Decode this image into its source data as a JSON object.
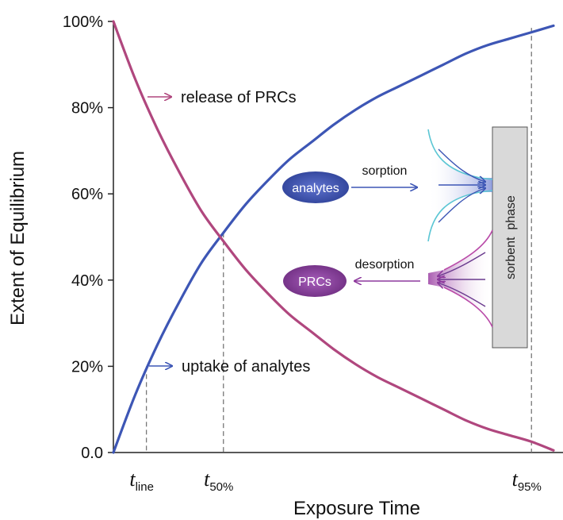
{
  "chart_data": {
    "type": "line",
    "xlabel": "Exposure Time",
    "ylabel": "Extent of Equilibrium",
    "ylim": [
      0,
      100
    ],
    "yticks": [
      {
        "value": 0,
        "label": "0.0"
      },
      {
        "value": 20,
        "label": "20%"
      },
      {
        "value": 40,
        "label": "40%"
      },
      {
        "value": 60,
        "label": "60%"
      },
      {
        "value": 80,
        "label": "80%"
      },
      {
        "value": 100,
        "label": "100%"
      }
    ],
    "series": [
      {
        "key": "uptake",
        "color": "#3d56b5",
        "x": [
          0,
          0.05,
          0.1,
          0.15,
          0.2,
          0.25,
          0.3,
          0.35,
          0.4,
          0.45,
          0.5,
          0.55,
          0.6,
          0.65,
          0.7,
          0.75,
          0.8,
          0.85,
          0.9,
          0.95,
          1.0
        ],
        "values": [
          0,
          13.5,
          25,
          35,
          44,
          51,
          57.5,
          63,
          68,
          72,
          76,
          79.5,
          82.5,
          85,
          87.5,
          90,
          92.5,
          94.5,
          96,
          97.5,
          99
        ]
      },
      {
        "key": "release",
        "color": "#b0477e",
        "x": [
          0,
          0.05,
          0.1,
          0.15,
          0.2,
          0.25,
          0.3,
          0.35,
          0.4,
          0.45,
          0.5,
          0.55,
          0.6,
          0.65,
          0.7,
          0.75,
          0.8,
          0.85,
          0.9,
          0.95,
          1.0
        ],
        "values": [
          100,
          86.5,
          75,
          65,
          56,
          49,
          42.5,
          37,
          32,
          28,
          24,
          20.5,
          17.5,
          15,
          12.5,
          10,
          7.5,
          5.5,
          4,
          2.5,
          0.5
        ]
      }
    ],
    "markers": [
      {
        "x": 0.075,
        "y": 20,
        "label": "t",
        "sub": "line"
      },
      {
        "x": 0.25,
        "y": 51,
        "label": "t",
        "sub": "50%"
      },
      {
        "x": 0.95,
        "y": 98.5,
        "label": "t",
        "sub": "95%"
      }
    ],
    "annotations": {
      "release": "release of PRCs",
      "uptake": "uptake of analytes"
    }
  },
  "inset": {
    "analytes": "analytes",
    "sorption": "sorption",
    "prcs": "PRCs",
    "desorption": "desorption",
    "sorbent": "sorbent  phase",
    "colors": {
      "analyte": "#3d56b5",
      "prc": "#8e3a9d",
      "cyan": "#5bc6d4",
      "magenta": "#b94aa8",
      "panel": "#d9d9d9"
    }
  }
}
